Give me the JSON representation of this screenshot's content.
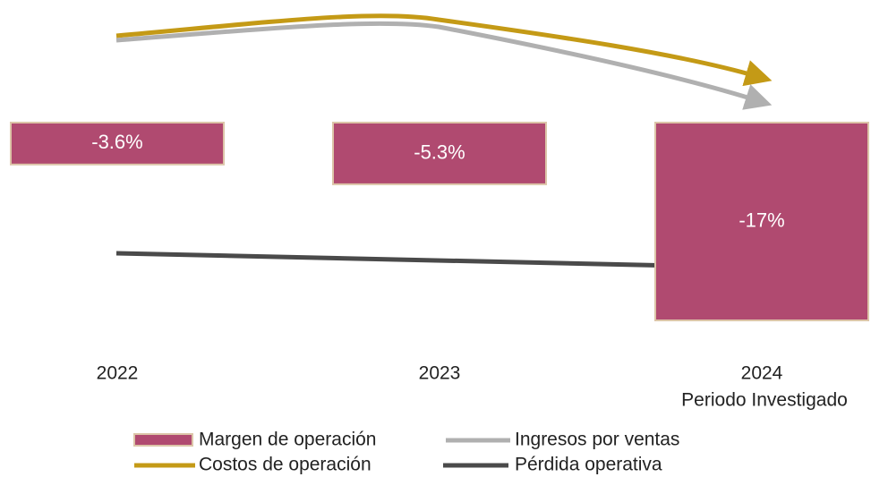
{
  "chart_data": {
    "type": "bar",
    "categories": [
      "2022",
      "2023",
      "2024"
    ],
    "annotation": "Periodo Investigado",
    "ylim": [
      -20,
      10
    ],
    "series": [
      {
        "name": "Margen de operación",
        "color": "#b04a70",
        "values": [
          -3.6,
          -5.3,
          -17
        ],
        "value_labels": [
          "-3.6%",
          "-5.3%",
          "-17%"
        ]
      }
    ],
    "trend_lines": [
      {
        "name": "Costos de operación",
        "color": "#c49a16"
      },
      {
        "name": "Ingresos por ventas",
        "color": "#b0b0b0"
      },
      {
        "name": "Pérdida operativa",
        "color": "#4a4a4a"
      }
    ]
  }
}
